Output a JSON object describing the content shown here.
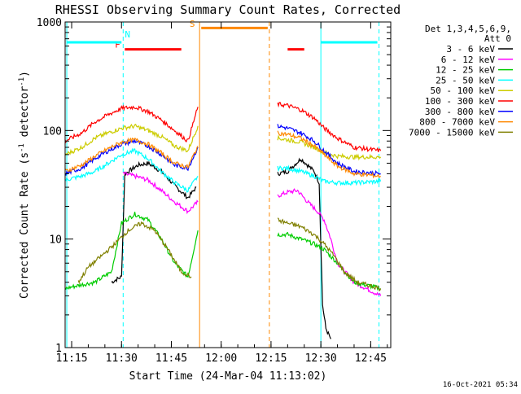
{
  "chart_data": {
    "type": "line",
    "title": "RHESSI Observing Summary Count Rates, Corrected",
    "xlabel": "Start Time (24-Mar-04 11:13:02)",
    "ylabel": "Corrected Count Rate (s",
    "ylabel_sup": "-1",
    "ylabel_tail": " detector",
    "ylabel_tail_sup": "-1",
    "ylabel_end": ")",
    "y_scale": "log",
    "ylim": [
      1,
      1000
    ],
    "xlim": [
      "11:13:02",
      "12:51:02"
    ],
    "x_ticks": [
      "11:15",
      "11:30",
      "11:45",
      "12:00",
      "12:15",
      "12:30",
      "12:45"
    ],
    "y_ticks": [
      "1",
      "10",
      "100",
      "1000"
    ],
    "footer": "16-Oct-2021 05:34",
    "legend_header": [
      "Det 1,3,4,5,6,9,",
      "Att 0"
    ],
    "legend_entries": [
      {
        "label": "3 - 6 keV",
        "color": "#000000"
      },
      {
        "label": "6 - 12 keV",
        "color": "#ff00ff"
      },
      {
        "label": "12 - 25 keV",
        "color": "#00cc00"
      },
      {
        "label": "25 - 50 keV",
        "color": "#00ffff"
      },
      {
        "label": "50 - 100 keV",
        "color": "#cccc00"
      },
      {
        "label": "100 - 300 keV",
        "color": "#ff0000"
      },
      {
        "label": "300 - 800 keV",
        "color": "#0000ff"
      },
      {
        "label": "800 - 7000 keV",
        "color": "#ff8800"
      },
      {
        "label": "7000 - 15000 keV",
        "color": "#808000"
      }
    ],
    "markers": {
      "N": {
        "label": "N",
        "color": "#00ffff"
      },
      "F": {
        "label": "F",
        "color": "#ff0000"
      },
      "S": {
        "label": "S",
        "color": "#ff8800"
      }
    },
    "vlines": [
      {
        "t": "11:13:32",
        "color": "#00ffff",
        "style": "solid"
      },
      {
        "t": "11:30:30",
        "color": "#00ffff",
        "style": "dashed"
      },
      {
        "t": "11:53:30",
        "color": "#ff8800",
        "style": "solid"
      },
      {
        "t": "12:14:30",
        "color": "#ff8800",
        "style": "dashed"
      },
      {
        "t": "12:30:00",
        "color": "#00ffff",
        "style": "solid"
      },
      {
        "t": "12:47:30",
        "color": "#00ffff",
        "style": "dashed"
      }
    ],
    "flag_bars": [
      {
        "flag": "N",
        "color": "#00ffff",
        "y": 650,
        "t0": "11:13:32",
        "t1": "11:30:00"
      },
      {
        "flag": "N",
        "color": "#00ffff",
        "y": 650,
        "t0": "12:30:00",
        "t1": "12:47:00"
      },
      {
        "flag": "F",
        "color": "#ff0000",
        "y": 560,
        "t0": "11:31:00",
        "t1": "11:48:00"
      },
      {
        "flag": "F",
        "color": "#ff0000",
        "y": 560,
        "t0": "12:20:00",
        "t1": "12:25:00"
      },
      {
        "flag": "S",
        "color": "#ff8800",
        "y": 880,
        "t0": "11:54:00",
        "t1": "12:14:00"
      }
    ],
    "series": [
      {
        "name": "3 - 6 keV",
        "color": "#000000",
        "segments": [
          {
            "t": [
              "11:27:00",
              "11:30:00",
              "11:31:00",
              "11:35:00",
              "11:38:00",
              "11:42:00",
              "11:46:00",
              "11:50:00",
              "11:52:30"
            ],
            "y": [
              4,
              4.5,
              40,
              48,
              50,
              42,
              31,
              24,
              30
            ]
          },
          {
            "t": [
              "12:17:00",
              "12:20:00",
              "12:24:00",
              "12:26:00",
              "12:28:00",
              "12:29:30",
              "12:30:30",
              "12:31:30",
              "12:33:00"
            ],
            "y": [
              40,
              42,
              55,
              48,
              42,
              33,
              2.5,
              1.5,
              1.2
            ]
          }
        ]
      },
      {
        "name": "6 - 12 keV",
        "color": "#ff00ff",
        "segments": [
          {
            "t": [
              "11:30:30",
              "11:34:00",
              "11:38:00",
              "11:42:00",
              "11:46:00",
              "11:50:00",
              "11:53:00"
            ],
            "y": [
              40,
              38,
              35,
              28,
              22,
              18,
              22
            ]
          },
          {
            "t": [
              "12:17:00",
              "12:20:00",
              "12:23:00",
              "12:26:00",
              "12:29:00",
              "12:31:00",
              "12:33:00",
              "12:35:00",
              "12:40:00",
              "12:48:00"
            ],
            "y": [
              25,
              27,
              28,
              22,
              18,
              15,
              10,
              6,
              4,
              3
            ]
          }
        ]
      },
      {
        "name": "12 - 25 keV",
        "color": "#00cc00",
        "segments": [
          {
            "t": [
              "11:13:00",
              "11:18:00",
              "11:22:00",
              "11:27:00",
              "11:30:00",
              "11:34:00",
              "11:38:00",
              "11:42:00",
              "11:46:00",
              "11:50:00",
              "11:53:00"
            ],
            "y": [
              3.5,
              3.8,
              4,
              5,
              14,
              17,
              15,
              10,
              6,
              4.5,
              12
            ]
          },
          {
            "t": [
              "12:17:00",
              "12:20:00",
              "12:24:00",
              "12:28:00",
              "12:31:00",
              "12:35:00",
              "12:40:00",
              "12:48:00"
            ],
            "y": [
              11,
              11,
              10,
              9,
              8,
              6,
              4,
              3.5
            ]
          }
        ]
      },
      {
        "name": "25 - 50 keV",
        "color": "#00ffff",
        "segments": [
          {
            "t": [
              "11:13:00",
              "11:18:00",
              "11:22:00",
              "11:26:00",
              "11:30:00",
              "11:34:00",
              "11:38:00",
              "11:42:00",
              "11:46:00",
              "11:50:00",
              "11:53:00"
            ],
            "y": [
              35,
              38,
              42,
              50,
              60,
              65,
              55,
              42,
              33,
              28,
              38
            ]
          },
          {
            "t": [
              "12:17:00",
              "12:20:00",
              "12:24:00",
              "12:28:00",
              "12:31:00",
              "12:35:00",
              "12:40:00",
              "12:48:00"
            ],
            "y": [
              45,
              45,
              42,
              38,
              34,
              33,
              33,
              34
            ]
          }
        ]
      },
      {
        "name": "50 - 100 keV",
        "color": "#cccc00",
        "segments": [
          {
            "t": [
              "11:13:00",
              "11:18:00",
              "11:22:00",
              "11:26:00",
              "11:30:00",
              "11:34:00",
              "11:38:00",
              "11:42:00",
              "11:46:00",
              "11:50:00",
              "11:53:00"
            ],
            "y": [
              60,
              70,
              85,
              95,
              105,
              110,
              100,
              88,
              72,
              65,
              110
            ]
          },
          {
            "t": [
              "12:17:00",
              "12:20:00",
              "12:24:00",
              "12:28:00",
              "12:31:00",
              "12:35:00",
              "12:40:00",
              "12:48:00"
            ],
            "y": [
              85,
              82,
              78,
              70,
              63,
              58,
              57,
              57
            ]
          }
        ]
      },
      {
        "name": "100 - 300 keV",
        "color": "#ff0000",
        "segments": [
          {
            "t": [
              "11:13:00",
              "11:18:00",
              "11:22:00",
              "11:26:00",
              "11:30:00",
              "11:34:00",
              "11:38:00",
              "11:42:00",
              "11:46:00",
              "11:50:00",
              "11:53:00"
            ],
            "y": [
              80,
              95,
              120,
              140,
              160,
              165,
              150,
              125,
              100,
              80,
              165
            ]
          },
          {
            "t": [
              "12:17:00",
              "12:20:00",
              "12:24:00",
              "12:28:00",
              "12:31:00",
              "12:35:00",
              "12:40:00",
              "12:48:00"
            ],
            "y": [
              175,
              170,
              155,
              130,
              105,
              85,
              70,
              65
            ]
          }
        ]
      },
      {
        "name": "300 - 800 keV",
        "color": "#0000ff",
        "segments": [
          {
            "t": [
              "11:13:00",
              "11:18:00",
              "11:22:00",
              "11:26:00",
              "11:30:00",
              "11:34:00",
              "11:38:00",
              "11:42:00",
              "11:46:00",
              "11:50:00",
              "11:53:00"
            ],
            "y": [
              40,
              45,
              55,
              65,
              75,
              80,
              72,
              60,
              48,
              45,
              70
            ]
          },
          {
            "t": [
              "12:17:00",
              "12:20:00",
              "12:24:00",
              "12:28:00",
              "12:31:00",
              "12:35:00",
              "12:40:00",
              "12:48:00"
            ],
            "y": [
              110,
              105,
              95,
              80,
              65,
              50,
              42,
              40
            ]
          }
        ]
      },
      {
        "name": "800 - 7000 keV",
        "color": "#ff8800",
        "segments": [
          {
            "t": [
              "11:13:00",
              "11:18:00",
              "11:22:00",
              "11:26:00",
              "11:30:00",
              "11:34:00",
              "11:38:00",
              "11:42:00",
              "11:46:00",
              "11:50:00",
              "11:53:00"
            ],
            "y": [
              42,
              48,
              58,
              68,
              78,
              82,
              75,
              62,
              50,
              46,
              72
            ]
          },
          {
            "t": [
              "12:17:00",
              "12:20:00",
              "12:24:00",
              "12:28:00",
              "12:31:00",
              "12:35:00",
              "12:40:00",
              "12:48:00"
            ],
            "y": [
              95,
              92,
              85,
              72,
              60,
              47,
              40,
              38
            ]
          }
        ]
      },
      {
        "name": "7000 - 15000 keV",
        "color": "#808000",
        "segments": [
          {
            "t": [
              "11:17:00",
              "11:20:00",
              "11:24:00",
              "11:28:00",
              "11:32:00",
              "11:36:00",
              "11:40:00",
              "11:44:00",
              "11:48:00",
              "11:51:00"
            ],
            "y": [
              4,
              5.5,
              7,
              9,
              12,
              14,
              12,
              8,
              5,
              4.5
            ]
          },
          {
            "t": [
              "12:17:00",
              "12:20:00",
              "12:24:00",
              "12:28:00",
              "12:31:00",
              "12:34:00",
              "12:37:00",
              "12:41:00",
              "12:48:00"
            ],
            "y": [
              15,
              14,
              13,
              11,
              9,
              7,
              5,
              4,
              3.5
            ]
          }
        ]
      }
    ]
  }
}
